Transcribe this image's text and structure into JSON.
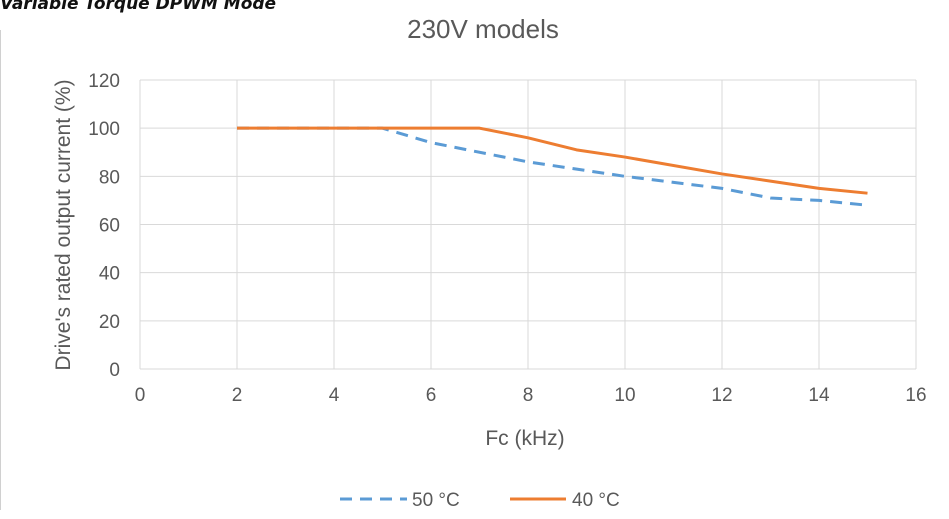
{
  "caption": "Variable Torque DPWM Mode",
  "chart_data": {
    "type": "line",
    "title": "230V models",
    "xlabel": "Fc (kHz)",
    "ylabel": "Drive's rated output current (%)",
    "xlim": [
      0,
      16
    ],
    "ylim": [
      0,
      120
    ],
    "x_ticks": [
      "0",
      "2",
      "4",
      "6",
      "8",
      "10",
      "12",
      "14",
      "16"
    ],
    "y_ticks": [
      "0",
      "20",
      "40",
      "60",
      "80",
      "100",
      "120"
    ],
    "grid": true,
    "legend_position": "bottom",
    "series": [
      {
        "name": "50 °C",
        "color": "#5B9BD5",
        "style": "dashed",
        "points": [
          [
            2,
            100
          ],
          [
            5,
            100
          ],
          [
            6,
            94
          ],
          [
            8,
            86
          ],
          [
            10,
            80
          ],
          [
            12,
            75
          ],
          [
            13,
            71
          ],
          [
            14,
            70
          ],
          [
            15,
            68
          ]
        ]
      },
      {
        "name": "40 °C",
        "color": "#ED7D31",
        "style": "solid",
        "points": [
          [
            2,
            100
          ],
          [
            7,
            100
          ],
          [
            8,
            96
          ],
          [
            9,
            91
          ],
          [
            10,
            88
          ],
          [
            12,
            81
          ],
          [
            13,
            78
          ],
          [
            14,
            75
          ],
          [
            15,
            73
          ]
        ]
      }
    ]
  }
}
